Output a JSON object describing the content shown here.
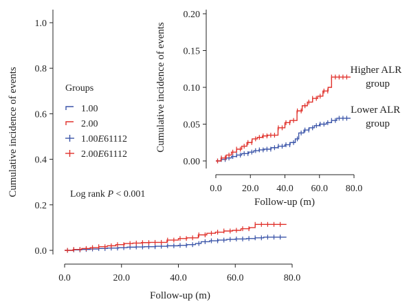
{
  "chart_data": [
    {
      "type": "line",
      "ylabel": "Cumulative incidence of events",
      "xlabel": "Follow-up (m)",
      "xlim": [
        0,
        80
      ],
      "ylim": [
        0,
        1.0
      ],
      "xticks": [
        "0.0",
        "20.0",
        "40.0",
        "60.0",
        "80.0"
      ],
      "yticks": [
        "0.0",
        "0.2",
        "0.4",
        "0.6",
        "0.8",
        "1.0"
      ],
      "legend_title": "Groups",
      "legend": [
        {
          "label_main": "1.00",
          "label_em": "",
          "label_tail": "",
          "marker": "step",
          "color": "#3a54a8"
        },
        {
          "label_main": "2.00",
          "label_em": "",
          "label_tail": "",
          "marker": "step",
          "color": "#e0312b"
        },
        {
          "label_main": "1.00",
          "label_em": "E",
          "label_tail": "61112",
          "marker": "plus",
          "color": "#3a54a8"
        },
        {
          "label_main": "2.00",
          "label_em": "E",
          "label_tail": "61112",
          "marker": "plus",
          "color": "#e0312b"
        }
      ],
      "annotation": {
        "pre": "Log rank ",
        "italic": "P",
        "post": " < 0.001"
      },
      "series": [
        {
          "name": "1.00",
          "color": "#3a54a8",
          "points": [
            [
              0,
              0
            ],
            [
              3,
              0.002
            ],
            [
              6,
              0.004
            ],
            [
              9,
              0.006
            ],
            [
              12,
              0.008
            ],
            [
              15,
              0.01
            ],
            [
              19,
              0.012
            ],
            [
              22,
              0.014
            ],
            [
              25,
              0.015
            ],
            [
              28,
              0.016
            ],
            [
              32,
              0.018
            ],
            [
              36,
              0.02
            ],
            [
              40,
              0.022
            ],
            [
              43,
              0.025
            ],
            [
              46,
              0.03
            ],
            [
              48,
              0.038
            ],
            [
              51,
              0.042
            ],
            [
              54,
              0.045
            ],
            [
              57,
              0.048
            ],
            [
              60,
              0.05
            ],
            [
              64,
              0.052
            ],
            [
              67,
              0.055
            ],
            [
              70,
              0.058
            ],
            [
              75,
              0.058
            ],
            [
              78,
              0.058
            ]
          ]
        },
        {
          "name": "2.00",
          "color": "#e0312b",
          "points": [
            [
              0,
              0
            ],
            [
              3,
              0.004
            ],
            [
              6,
              0.008
            ],
            [
              9,
              0.012
            ],
            [
              12,
              0.016
            ],
            [
              15,
              0.02
            ],
            [
              18,
              0.025
            ],
            [
              21,
              0.03
            ],
            [
              24,
              0.032
            ],
            [
              27,
              0.034
            ],
            [
              30,
              0.035
            ],
            [
              34,
              0.035
            ],
            [
              36,
              0.045
            ],
            [
              40,
              0.052
            ],
            [
              43,
              0.055
            ],
            [
              47,
              0.068
            ],
            [
              50,
              0.075
            ],
            [
              53,
              0.08
            ],
            [
              56,
              0.085
            ],
            [
              59,
              0.088
            ],
            [
              62,
              0.095
            ],
            [
              65,
              0.1
            ],
            [
              67,
              0.114
            ],
            [
              70,
              0.114
            ],
            [
              78,
              0.114
            ]
          ]
        }
      ]
    },
    {
      "type": "line",
      "ylabel": "Cumulative incidence of events",
      "xlabel": "Follow-up (m)",
      "xlim": [
        0,
        80
      ],
      "ylim": [
        0,
        0.2
      ],
      "xticks": [
        "0.0",
        "20.0",
        "40.0",
        "60.0",
        "80.0"
      ],
      "yticks": [
        "0.00",
        "0.05",
        "0.10",
        "0.15",
        "0.20"
      ],
      "annotations": [
        {
          "lines": [
            "Higher ALR",
            "group"
          ]
        },
        {
          "lines": [
            "Lower ALR",
            "group"
          ]
        }
      ]
    }
  ]
}
